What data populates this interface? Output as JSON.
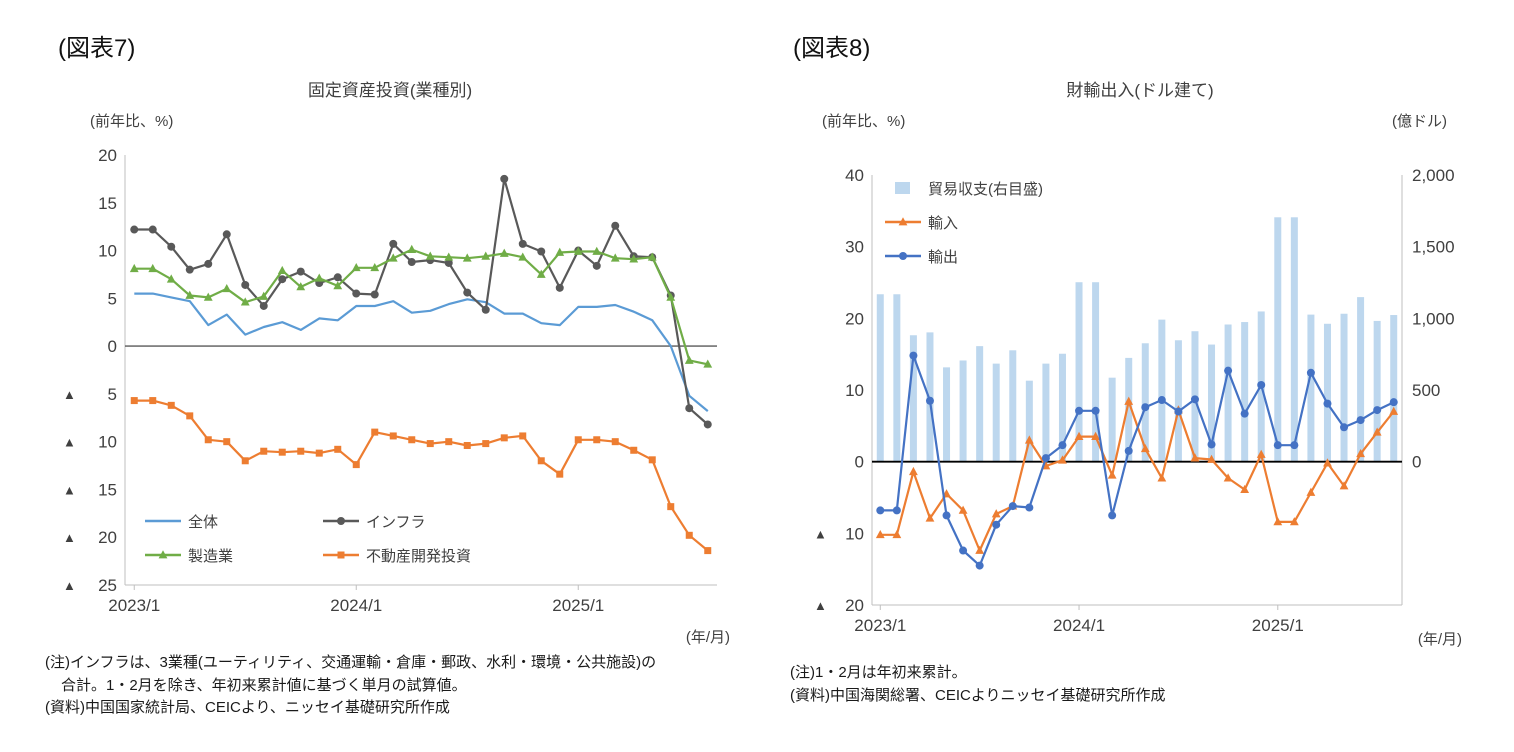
{
  "figure7": {
    "label": "(図表7)",
    "title": "固定資産投資(業種別)",
    "y_axis_unit": "(前年比、%)",
    "x_axis_unit": "(年/月)",
    "notes": [
      "(注)インフラは、3業種(ユーティリティ、交通運輸・倉庫・郵政、水利・環境・公共施設)の",
      "合計。1・2月を除き、年初来累計値に基づく単月の試算値。",
      "(資料)中国国家統計局、CEICより、ニッセイ基礎研究所作成"
    ]
  },
  "figure8": {
    "label": "(図表8)",
    "title": "財輸出入(ドル建て)",
    "y_axis_unit_left": "(前年比、%)",
    "y_axis_unit_right": "(億ドル)",
    "x_axis_unit": "(年/月)",
    "notes": [
      "(注)1・2月は年初来累計。",
      "(資料)中国海関総署、CEICよりニッセイ基礎研究所作成"
    ]
  },
  "chart_data": [
    {
      "id": "fig7",
      "type": "line",
      "title": "固定資産投資(業種別)",
      "ylabel": "(前年比、%)",
      "xlabel": "(年/月)",
      "ylim": [
        -25,
        20
      ],
      "yticks": [
        20,
        15,
        10,
        5,
        0,
        -5,
        -10,
        -15,
        -20,
        -25
      ],
      "ytick_labels": [
        "20",
        "15",
        "10",
        "5",
        "0",
        "▲ 5",
        "▲ 10",
        "▲ 15",
        "▲ 20",
        "▲ 25"
      ],
      "grid": false,
      "legend_position": "bottom-left-inside",
      "x_ticks": [
        {
          "index": 0,
          "label": "2023/1"
        },
        {
          "index": 12,
          "label": "2024/1"
        },
        {
          "index": 24,
          "label": "2025/1"
        }
      ],
      "categories": [
        "2023/1",
        "2023/2",
        "2023/3",
        "2023/4",
        "2023/5",
        "2023/6",
        "2023/7",
        "2023/8",
        "2023/9",
        "2023/10",
        "2023/11",
        "2023/12",
        "2024/1",
        "2024/2",
        "2024/3",
        "2024/4",
        "2024/5",
        "2024/6",
        "2024/7",
        "2024/8",
        "2024/9",
        "2024/10",
        "2024/11",
        "2024/12",
        "2025/1",
        "2025/2",
        "2025/3",
        "2025/4",
        "2025/5",
        "2025/6",
        "2025/7",
        "2025/8"
      ],
      "series": [
        {
          "name": "全体",
          "color": "#5B9BD5",
          "marker": "none",
          "values": [
            5.5,
            5.5,
            5.1,
            4.7,
            2.2,
            3.3,
            1.2,
            2.0,
            2.5,
            1.7,
            2.9,
            2.7,
            4.2,
            4.2,
            4.7,
            3.5,
            3.7,
            4.4,
            4.9,
            4.6,
            3.4,
            3.4,
            2.4,
            2.2,
            4.1,
            4.1,
            4.3,
            3.6,
            2.7,
            0.0,
            -5.2,
            -6.8
          ]
        },
        {
          "name": "インフラ",
          "color": "#595959",
          "marker": "circle",
          "values": [
            12.2,
            12.2,
            10.4,
            8.0,
            8.6,
            11.7,
            6.4,
            4.2,
            7.0,
            7.8,
            6.6,
            7.2,
            5.5,
            5.4,
            10.7,
            8.8,
            9.0,
            8.7,
            5.6,
            3.8,
            17.5,
            10.7,
            9.9,
            6.1,
            10.0,
            8.4,
            12.6,
            9.4,
            9.3,
            5.3,
            -6.5,
            -8.2
          ]
        },
        {
          "name": "製造業",
          "color": "#70AD47",
          "marker": "triangle",
          "values": [
            8.1,
            8.1,
            7.0,
            5.3,
            5.1,
            6.0,
            4.6,
            5.2,
            7.9,
            6.2,
            7.1,
            6.3,
            8.2,
            8.2,
            9.2,
            10.1,
            9.4,
            9.3,
            9.2,
            9.4,
            9.7,
            9.3,
            7.5,
            9.8,
            9.9,
            9.9,
            9.2,
            9.1,
            9.3,
            5.1,
            -1.5,
            -1.9
          ]
        },
        {
          "name": "不動産開発投資",
          "color": "#ED7D31",
          "marker": "square",
          "values": [
            -5.7,
            -5.7,
            -6.2,
            -7.3,
            -9.8,
            -10.0,
            -12.0,
            -11.0,
            -11.1,
            -11.0,
            -11.2,
            -10.8,
            -12.4,
            -9.0,
            -9.4,
            -9.8,
            -10.2,
            -10.0,
            -10.4,
            -10.2,
            -9.6,
            -9.4,
            -12.0,
            -13.4,
            -9.8,
            -9.8,
            -10.0,
            -10.9,
            -11.9,
            -16.8,
            -19.8,
            -21.4
          ]
        }
      ]
    },
    {
      "id": "fig8",
      "type": "combo",
      "title": "財輸出入(ドル建て)",
      "ylabel_left": "(前年比、%)",
      "ylabel_right": "(億ドル)",
      "xlabel": "(年/月)",
      "ylim_left": [
        -20,
        40
      ],
      "yticks_left": [
        40,
        30,
        20,
        10,
        0,
        -10,
        -20
      ],
      "ytick_labels_left": [
        "40",
        "30",
        "20",
        "10",
        "0",
        "▲ 10",
        "▲ 20"
      ],
      "ylim_right": [
        0,
        2000
      ],
      "yticks_right": [
        2000,
        1500,
        1000,
        500,
        0
      ],
      "ytick_labels_right": [
        "2,000",
        "1,500",
        "1,000",
        "500",
        "0"
      ],
      "grid": false,
      "legend_position": "top-left-inside",
      "x_ticks": [
        {
          "index": 0,
          "label": "2023/1"
        },
        {
          "index": 12,
          "label": "2024/1"
        },
        {
          "index": 24,
          "label": "2025/1"
        }
      ],
      "categories": [
        "2023/1",
        "2023/2",
        "2023/3",
        "2023/4",
        "2023/5",
        "2023/6",
        "2023/7",
        "2023/8",
        "2023/9",
        "2023/10",
        "2023/11",
        "2023/12",
        "2024/1",
        "2024/2",
        "2024/3",
        "2024/4",
        "2024/5",
        "2024/6",
        "2024/7",
        "2024/8",
        "2024/9",
        "2024/10",
        "2024/11",
        "2024/12",
        "2025/1",
        "2025/2",
        "2025/3",
        "2025/4",
        "2025/5",
        "2025/6",
        "2025/7",
        "2025/8"
      ],
      "series": [
        {
          "name": "貿易収支(右目盛)",
          "type": "bar",
          "axis": "right",
          "color": "#BDD7EE",
          "values": [
            1168,
            1168,
            882,
            902,
            658,
            706,
            806,
            684,
            777,
            565,
            684,
            753,
            1252,
            1252,
            586,
            724,
            826,
            991,
            847,
            910,
            817,
            957,
            974,
            1048,
            1705,
            1705,
            1026,
            962,
            1032,
            1148,
            982,
            1023
          ]
        },
        {
          "name": "輸入",
          "type": "line",
          "axis": "left",
          "color": "#ED7D31",
          "marker": "triangle",
          "values": [
            -10.2,
            -10.2,
            -1.4,
            -7.9,
            -4.5,
            -6.8,
            -12.4,
            -7.3,
            -6.2,
            3.0,
            -0.6,
            0.2,
            3.5,
            3.5,
            -1.9,
            8.4,
            1.8,
            -2.3,
            7.2,
            0.5,
            0.3,
            -2.3,
            -3.9,
            1.0,
            -8.4,
            -8.4,
            -4.3,
            -0.2,
            -3.4,
            1.1,
            4.1,
            7.0
          ]
        },
        {
          "name": "輸出",
          "type": "line",
          "axis": "left",
          "color": "#4472C4",
          "marker": "circle",
          "values": [
            -6.8,
            -6.8,
            14.8,
            8.5,
            -7.5,
            -12.4,
            -14.5,
            -8.8,
            -6.2,
            -6.4,
            0.5,
            2.3,
            7.1,
            7.1,
            -7.5,
            1.5,
            7.6,
            8.6,
            7.0,
            8.7,
            2.4,
            12.7,
            6.7,
            10.7,
            2.3,
            2.3,
            12.4,
            8.1,
            4.8,
            5.8,
            7.2,
            8.3
          ]
        }
      ]
    }
  ]
}
